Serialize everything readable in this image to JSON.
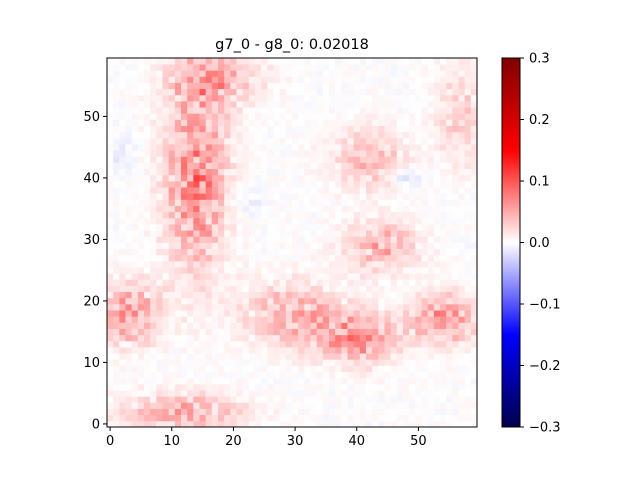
{
  "chart_data": {
    "type": "heatmap",
    "title": "g7_0 - g8_0: 0.02018",
    "xlabel": "",
    "ylabel": "",
    "grid_size": [
      60,
      60
    ],
    "xlim": [
      -0.5,
      59.5
    ],
    "ylim": [
      -0.5,
      59.5
    ],
    "origin": "lower",
    "x_ticks": [
      0,
      10,
      20,
      30,
      40,
      50
    ],
    "y_ticks": [
      0,
      10,
      20,
      30,
      40,
      50
    ],
    "colormap": "seismic",
    "colormap_stops": [
      "#00004c",
      "#0000ff",
      "#ffffff",
      "#ff0000",
      "#7f0000"
    ],
    "colorbar": {
      "vmin": -0.3,
      "vmax": 0.3,
      "ticks": [
        "0.3",
        "0.2",
        "0.1",
        "0.0",
        "−0.1",
        "−0.2",
        "−0.3"
      ]
    },
    "pattern_summary": "Mostly weak positive (red) differences forming a bright left column (x 0-22, y 0-60), a lower horizontal band (y 10-25, x 20-60) and a right-upper diagonal arm (x 35-60, y 25-50); faint negative (blue) patches near x 47, y 40 and x 22, y 36."
  }
}
